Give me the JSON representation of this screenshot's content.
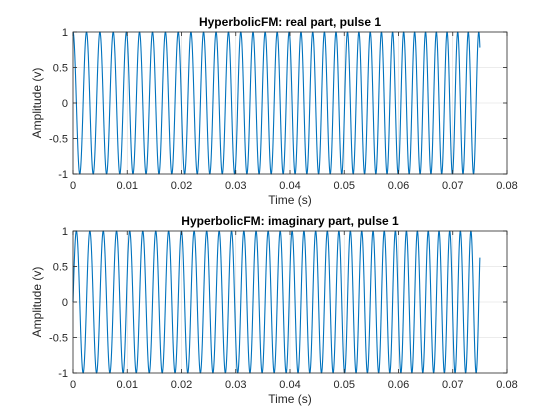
{
  "chart_data": [
    {
      "type": "line",
      "title": "HyperbolicFM: real part, pulse 1",
      "xlabel": "Time (s)",
      "ylabel": "Amplitude (v)",
      "xlim": [
        0,
        0.08
      ],
      "ylim": [
        -1,
        1
      ],
      "xticks": [
        0,
        0.01,
        0.02,
        0.03,
        0.04,
        0.05,
        0.06,
        0.07,
        0.08
      ],
      "xtick_labels": [
        "0",
        "0.01",
        "0.02",
        "0.03",
        "0.04",
        "0.05",
        "0.06",
        "0.07",
        "0.08"
      ],
      "yticks": [
        -1,
        -0.5,
        0,
        0.5,
        1
      ],
      "ytick_labels": [
        "-1",
        "-0.5",
        "0",
        "0.5",
        "1"
      ],
      "grid": true,
      "series": [
        {
          "color": "#0072BD",
          "signal": {
            "function": "cos",
            "duration": 0.075,
            "start_frequency_hz": 400,
            "end_frequency_hz": 520,
            "amplitude": 1
          }
        }
      ]
    },
    {
      "type": "line",
      "title": "HyperbolicFM: imaginary part, pulse 1",
      "xlabel": "Time (s)",
      "ylabel": "Amplitude (v)",
      "xlim": [
        0,
        0.08
      ],
      "ylim": [
        -1,
        1
      ],
      "xticks": [
        0,
        0.01,
        0.02,
        0.03,
        0.04,
        0.05,
        0.06,
        0.07,
        0.08
      ],
      "xtick_labels": [
        "0",
        "0.01",
        "0.02",
        "0.03",
        "0.04",
        "0.05",
        "0.06",
        "0.07",
        "0.08"
      ],
      "yticks": [
        -1,
        -0.5,
        0,
        0.5,
        1
      ],
      "ytick_labels": [
        "-1",
        "-0.5",
        "0",
        "0.5",
        "1"
      ],
      "grid": true,
      "series": [
        {
          "color": "#0072BD",
          "signal": {
            "function": "sin",
            "duration": 0.075,
            "start_frequency_hz": 400,
            "end_frequency_hz": 520,
            "amplitude": 1
          }
        }
      ]
    }
  ]
}
